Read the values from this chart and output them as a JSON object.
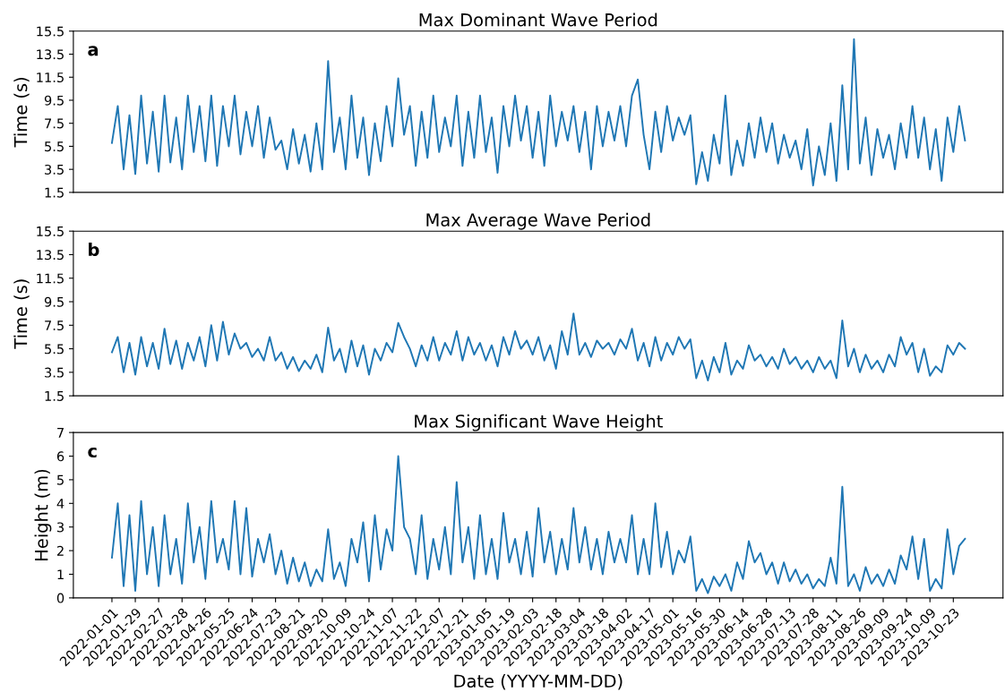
{
  "chart_data": [
    {
      "type": "line",
      "title": "Max Dominant Wave Period",
      "ylabel": "Time (s)",
      "annotations": [
        "a"
      ],
      "tick_labels": "y",
      "categories": [
        "2022-01-01",
        null,
        null,
        null,
        "2022-01-29",
        null,
        null,
        null,
        "2022-02-27",
        null,
        null,
        null,
        "2022-03-28",
        null,
        null,
        null,
        "2022-04-26",
        null,
        null,
        null,
        "2022-05-25",
        null,
        null,
        null,
        "2022-06-24",
        null,
        null,
        null,
        "2022-07-23",
        null,
        null,
        null,
        "2022-08-21",
        null,
        null,
        null,
        "2022-09-20",
        null,
        null,
        null,
        "2022-10-09",
        null,
        null,
        null,
        "2022-10-24",
        null,
        null,
        null,
        "2022-11-07",
        null,
        null,
        null,
        "2022-11-22",
        null,
        null,
        null,
        "2022-12-07",
        null,
        null,
        null,
        "2022-12-21",
        null,
        null,
        null,
        "2023-01-05",
        null,
        null,
        null,
        "2023-01-19",
        null,
        null,
        null,
        "2023-02-03",
        null,
        null,
        null,
        "2023-02-18",
        null,
        null,
        null,
        "2023-03-04",
        null,
        null,
        null,
        "2023-03-18",
        null,
        null,
        null,
        "2023-04-02",
        null,
        null,
        null,
        "2023-04-17",
        null,
        null,
        null,
        "2023-05-01",
        null,
        null,
        null,
        "2023-05-16",
        null,
        null,
        null,
        "2023-05-30",
        null,
        null,
        null,
        "2023-06-14",
        null,
        null,
        null,
        "2023-06-28",
        null,
        null,
        null,
        "2023-07-13",
        null,
        null,
        null,
        "2023-07-28",
        null,
        null,
        null,
        "2023-08-11",
        null,
        null,
        null,
        "2023-08-26",
        null,
        null,
        null,
        "2023-09-09",
        null,
        null,
        null,
        "2023-09-24",
        null,
        null,
        null,
        "2023-10-09",
        null,
        null,
        null,
        "2023-10-23",
        null,
        null
      ],
      "ylim": [
        1.5,
        15.5
      ],
      "yticks": [
        1.5,
        3.5,
        5.5,
        7.5,
        9.5,
        11.5,
        13.5,
        15.5
      ],
      "series": [
        {
          "color": "#1f77b4",
          "values": [
            5.8,
            9.0,
            3.5,
            8.2,
            3.1,
            9.9,
            4.0,
            8.5,
            3.3,
            9.9,
            4.1,
            8.0,
            3.5,
            9.9,
            5.0,
            9.0,
            4.2,
            9.9,
            3.8,
            9.0,
            5.5,
            9.9,
            4.8,
            8.5,
            5.5,
            9.0,
            4.5,
            8.0,
            5.2,
            6.0,
            3.5,
            7.0,
            4.0,
            6.5,
            3.3,
            7.5,
            3.5,
            12.9,
            5.0,
            8.0,
            3.5,
            9.9,
            4.5,
            8.0,
            3.0,
            7.5,
            4.2,
            9.0,
            5.5,
            11.4,
            6.5,
            9.0,
            3.8,
            8.5,
            4.5,
            9.9,
            5.0,
            8.0,
            5.5,
            9.9,
            3.8,
            8.5,
            4.5,
            9.9,
            5.0,
            8.0,
            3.2,
            9.0,
            5.5,
            9.9,
            6.0,
            9.0,
            4.5,
            8.5,
            3.8,
            9.9,
            5.5,
            8.5,
            6.0,
            9.0,
            5.0,
            8.5,
            3.5,
            9.0,
            5.5,
            8.5,
            6.0,
            9.0,
            5.5,
            9.9,
            11.3,
            6.5,
            3.5,
            8.5,
            5.0,
            9.0,
            6.0,
            8.0,
            6.5,
            8.2,
            2.2,
            5.0,
            2.5,
            6.5,
            4.0,
            9.9,
            3.0,
            6.0,
            3.8,
            7.5,
            4.5,
            8.0,
            5.0,
            7.5,
            4.0,
            6.5,
            4.5,
            6.0,
            3.5,
            7.0,
            2.1,
            5.5,
            3.0,
            7.5,
            2.5,
            10.8,
            3.5,
            14.8,
            4.0,
            8.0,
            3.0,
            7.0,
            4.5,
            6.5,
            3.5,
            7.5,
            4.5,
            9.0,
            4.5,
            8.0,
            3.5,
            7.0,
            2.5,
            8.0,
            5.0,
            9.0,
            6.0
          ]
        }
      ]
    },
    {
      "type": "line",
      "title": "Max Average Wave Period",
      "ylabel": "Time (s)",
      "annotations": [
        "b"
      ],
      "tick_labels": "y",
      "categories": [
        "2022-01-01",
        null,
        null,
        null,
        "2022-01-29",
        null,
        null,
        null,
        "2022-02-27",
        null,
        null,
        null,
        "2022-03-28",
        null,
        null,
        null,
        "2022-04-26",
        null,
        null,
        null,
        "2022-05-25",
        null,
        null,
        null,
        "2022-06-24",
        null,
        null,
        null,
        "2022-07-23",
        null,
        null,
        null,
        "2022-08-21",
        null,
        null,
        null,
        "2022-09-20",
        null,
        null,
        null,
        "2022-10-09",
        null,
        null,
        null,
        "2022-10-24",
        null,
        null,
        null,
        "2022-11-07",
        null,
        null,
        null,
        "2022-11-22",
        null,
        null,
        null,
        "2022-12-07",
        null,
        null,
        null,
        "2022-12-21",
        null,
        null,
        null,
        "2023-01-05",
        null,
        null,
        null,
        "2023-01-19",
        null,
        null,
        null,
        "2023-02-03",
        null,
        null,
        null,
        "2023-02-18",
        null,
        null,
        null,
        "2023-03-04",
        null,
        null,
        null,
        "2023-03-18",
        null,
        null,
        null,
        "2023-04-02",
        null,
        null,
        null,
        "2023-04-17",
        null,
        null,
        null,
        "2023-05-01",
        null,
        null,
        null,
        "2023-05-16",
        null,
        null,
        null,
        "2023-05-30",
        null,
        null,
        null,
        "2023-06-14",
        null,
        null,
        null,
        "2023-06-28",
        null,
        null,
        null,
        "2023-07-13",
        null,
        null,
        null,
        "2023-07-28",
        null,
        null,
        null,
        "2023-08-11",
        null,
        null,
        null,
        "2023-08-26",
        null,
        null,
        null,
        "2023-09-09",
        null,
        null,
        null,
        "2023-09-24",
        null,
        null,
        null,
        "2023-10-09",
        null,
        null,
        null,
        "2023-10-23",
        null,
        null
      ],
      "ylim": [
        1.5,
        15.5
      ],
      "yticks": [
        1.5,
        3.5,
        5.5,
        7.5,
        9.5,
        11.5,
        13.5,
        15.5
      ],
      "series": [
        {
          "color": "#1f77b4",
          "values": [
            5.2,
            6.5,
            3.5,
            6.0,
            3.3,
            6.5,
            4.0,
            6.0,
            3.8,
            7.2,
            4.2,
            6.2,
            3.8,
            6.0,
            4.5,
            6.5,
            4.0,
            7.5,
            4.5,
            7.8,
            5.0,
            6.8,
            5.5,
            6.0,
            4.8,
            5.5,
            4.5,
            6.5,
            4.5,
            5.2,
            3.8,
            4.8,
            3.6,
            4.5,
            3.8,
            5.0,
            3.5,
            7.3,
            4.5,
            5.5,
            3.5,
            6.2,
            4.0,
            5.8,
            3.3,
            5.5,
            4.5,
            6.0,
            5.2,
            7.7,
            6.5,
            5.5,
            4.0,
            5.8,
            4.5,
            6.5,
            4.5,
            6.0,
            5.0,
            7.0,
            4.5,
            6.5,
            5.0,
            6.0,
            4.5,
            5.8,
            4.0,
            6.5,
            5.0,
            7.0,
            5.5,
            6.2,
            5.0,
            6.5,
            4.5,
            5.8,
            3.8,
            7.0,
            5.0,
            8.5,
            5.0,
            6.0,
            4.8,
            6.2,
            5.5,
            6.0,
            5.0,
            6.3,
            5.5,
            7.2,
            4.5,
            6.0,
            4.0,
            6.5,
            4.5,
            6.0,
            5.0,
            6.5,
            5.5,
            6.3,
            3.0,
            4.5,
            2.8,
            4.8,
            3.5,
            6.0,
            3.3,
            4.5,
            3.8,
            5.8,
            4.5,
            5.0,
            4.0,
            4.8,
            3.8,
            5.5,
            4.2,
            4.8,
            3.8,
            4.5,
            3.5,
            4.8,
            3.8,
            4.5,
            3.0,
            7.9,
            4.0,
            5.5,
            3.5,
            5.0,
            3.8,
            4.5,
            3.5,
            5.0,
            4.0,
            6.5,
            5.0,
            6.0,
            3.5,
            5.5,
            3.2,
            4.0,
            3.5,
            5.8,
            5.0,
            6.0,
            5.5
          ]
        }
      ]
    },
    {
      "type": "line",
      "title": "Max Significant Wave Height",
      "xlabel": "Date (YYYY-MM-DD)",
      "ylabel": "Height (m)",
      "annotations": [
        "c"
      ],
      "categories": [
        "2022-01-01",
        null,
        null,
        null,
        "2022-01-29",
        null,
        null,
        null,
        "2022-02-27",
        null,
        null,
        null,
        "2022-03-28",
        null,
        null,
        null,
        "2022-04-26",
        null,
        null,
        null,
        "2022-05-25",
        null,
        null,
        null,
        "2022-06-24",
        null,
        null,
        null,
        "2022-07-23",
        null,
        null,
        null,
        "2022-08-21",
        null,
        null,
        null,
        "2022-09-20",
        null,
        null,
        null,
        "2022-10-09",
        null,
        null,
        null,
        "2022-10-24",
        null,
        null,
        null,
        "2022-11-07",
        null,
        null,
        null,
        "2022-11-22",
        null,
        null,
        null,
        "2022-12-07",
        null,
        null,
        null,
        "2022-12-21",
        null,
        null,
        null,
        "2023-01-05",
        null,
        null,
        null,
        "2023-01-19",
        null,
        null,
        null,
        "2023-02-03",
        null,
        null,
        null,
        "2023-02-18",
        null,
        null,
        null,
        "2023-03-04",
        null,
        null,
        null,
        "2023-03-18",
        null,
        null,
        null,
        "2023-04-02",
        null,
        null,
        null,
        "2023-04-17",
        null,
        null,
        null,
        "2023-05-01",
        null,
        null,
        null,
        "2023-05-16",
        null,
        null,
        null,
        "2023-05-30",
        null,
        null,
        null,
        "2023-06-14",
        null,
        null,
        null,
        "2023-06-28",
        null,
        null,
        null,
        "2023-07-13",
        null,
        null,
        null,
        "2023-07-28",
        null,
        null,
        null,
        "2023-08-11",
        null,
        null,
        null,
        "2023-08-26",
        null,
        null,
        null,
        "2023-09-09",
        null,
        null,
        null,
        "2023-09-24",
        null,
        null,
        null,
        "2023-10-09",
        null,
        null,
        null,
        "2023-10-23",
        null,
        null
      ],
      "ylim": [
        0,
        7
      ],
      "yticks": [
        0,
        1,
        2,
        3,
        4,
        5,
        6,
        7
      ],
      "series": [
        {
          "color": "#1f77b4",
          "values": [
            1.7,
            4.0,
            0.5,
            3.5,
            0.3,
            4.1,
            1.0,
            3.0,
            0.5,
            3.5,
            1.0,
            2.5,
            0.6,
            4.0,
            1.5,
            3.0,
            0.8,
            4.1,
            1.5,
            2.5,
            1.2,
            4.1,
            1.0,
            3.8,
            0.9,
            2.5,
            1.5,
            2.7,
            1.0,
            2.0,
            0.6,
            1.7,
            0.7,
            1.5,
            0.5,
            1.2,
            0.7,
            2.9,
            0.8,
            1.5,
            0.5,
            2.5,
            1.5,
            3.2,
            0.7,
            3.5,
            1.2,
            2.9,
            2.0,
            6.0,
            3.0,
            2.5,
            1.0,
            3.5,
            0.8,
            2.5,
            1.2,
            3.0,
            1.0,
            4.9,
            1.5,
            3.0,
            0.8,
            3.5,
            1.0,
            2.5,
            0.8,
            3.6,
            1.5,
            2.5,
            1.0,
            2.8,
            0.9,
            3.8,
            1.5,
            2.8,
            1.0,
            2.5,
            1.2,
            3.8,
            1.5,
            3.0,
            1.2,
            2.5,
            1.0,
            2.8,
            1.5,
            2.5,
            1.5,
            3.5,
            1.0,
            2.5,
            1.0,
            4.0,
            1.3,
            2.8,
            1.0,
            2.0,
            1.5,
            2.6,
            0.3,
            0.8,
            0.2,
            0.9,
            0.5,
            1.0,
            0.3,
            1.5,
            0.8,
            2.4,
            1.5,
            1.9,
            1.0,
            1.5,
            0.6,
            1.5,
            0.7,
            1.2,
            0.6,
            1.0,
            0.4,
            0.8,
            0.5,
            1.7,
            0.6,
            4.7,
            0.5,
            1.0,
            0.3,
            1.3,
            0.6,
            1.0,
            0.5,
            1.2,
            0.6,
            1.8,
            1.2,
            2.6,
            0.8,
            2.5,
            0.3,
            0.8,
            0.4,
            2.9,
            1.0,
            2.2,
            2.5
          ]
        }
      ]
    }
  ]
}
